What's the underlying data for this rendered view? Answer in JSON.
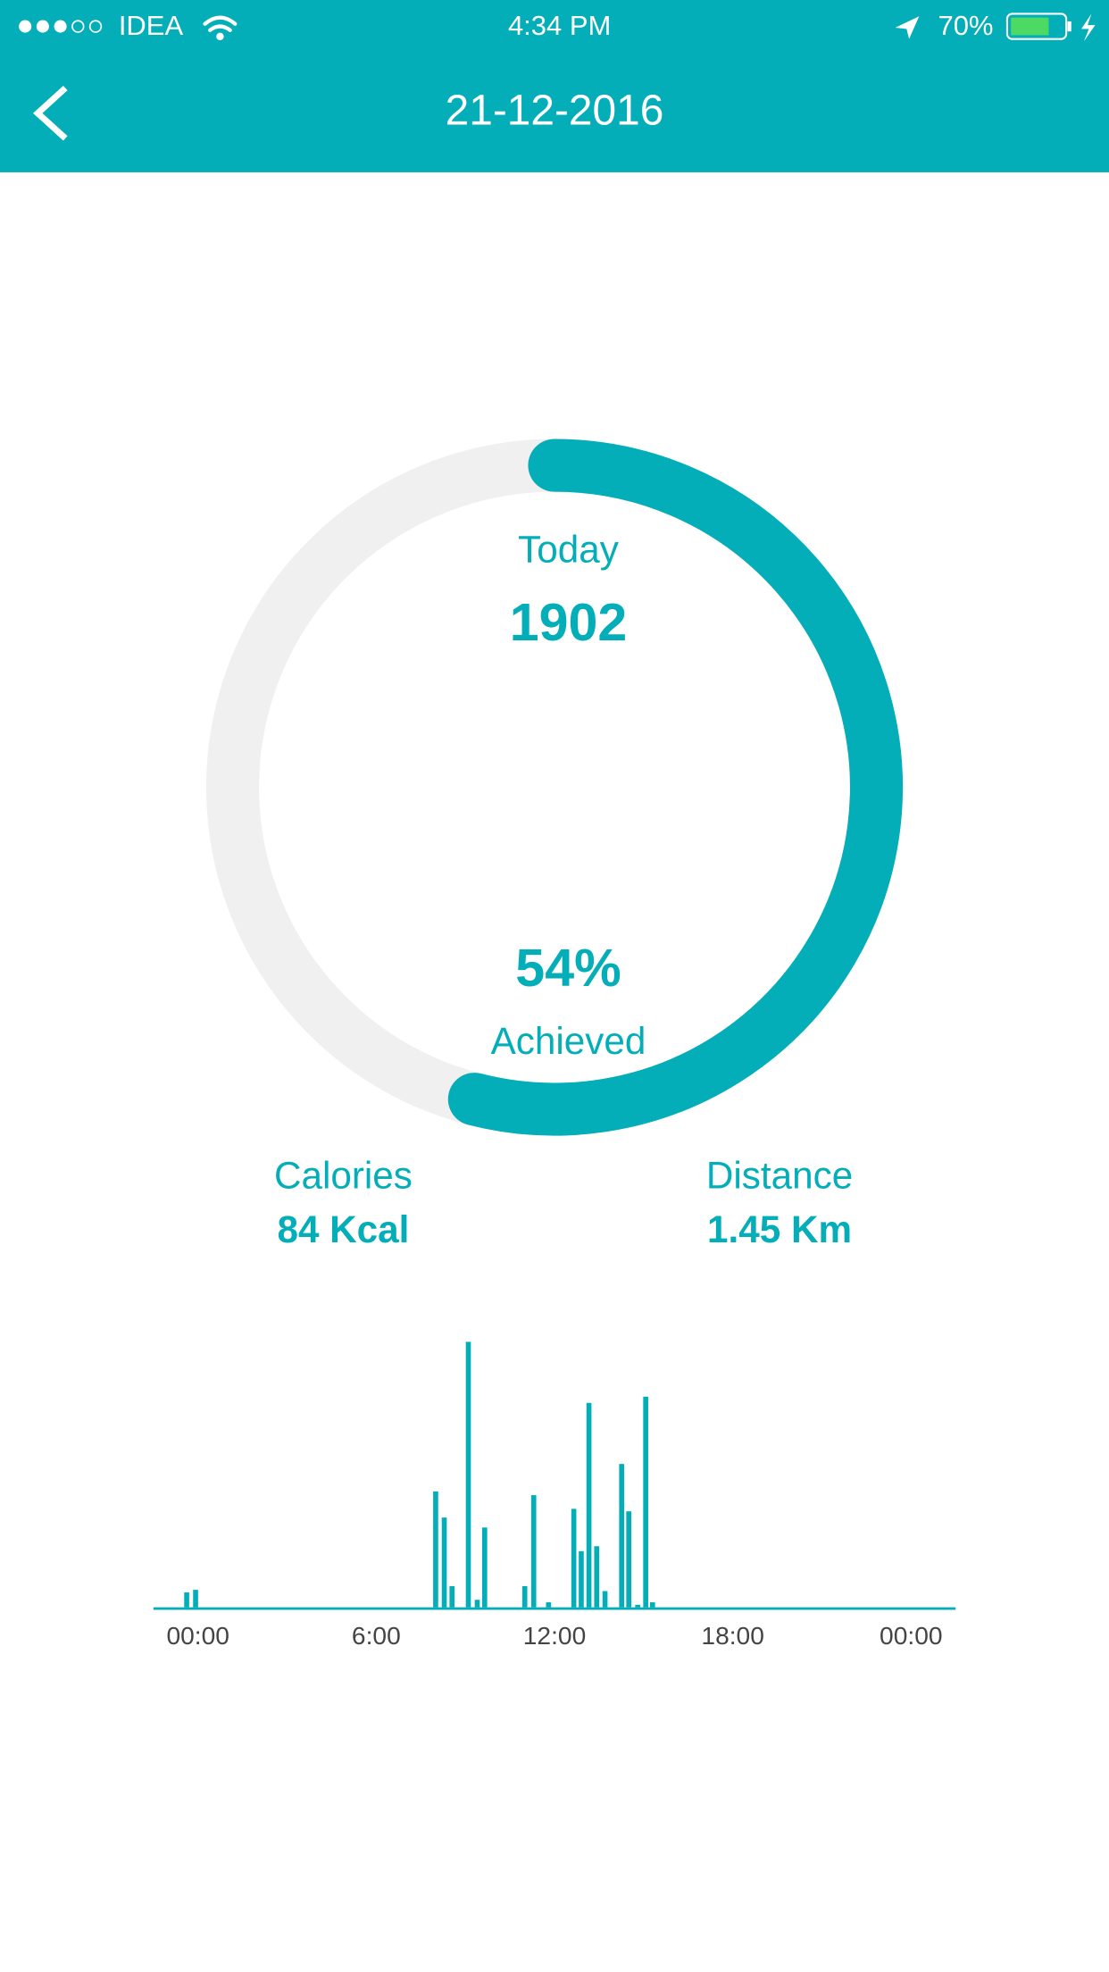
{
  "status_bar": {
    "carrier": "IDEA",
    "time": "4:34 PM",
    "battery": "70%"
  },
  "header": {
    "title": "21-12-2016"
  },
  "ring": {
    "caption": "Today",
    "steps": "1902",
    "percent": 54,
    "percent_label": "54%",
    "status": "Achieved"
  },
  "stats": [
    {
      "label": "Calories",
      "value": "84 Kcal"
    },
    {
      "label": "Distance",
      "value": "1.45 Km"
    }
  ],
  "chart_data": {
    "type": "bar",
    "color": "#04aeb8",
    "x": [
      -0.38,
      -0.08,
      8.0,
      8.29,
      8.55,
      9.1,
      9.4,
      9.65,
      11.0,
      11.3,
      11.8,
      12.65,
      12.9,
      13.16,
      13.42,
      13.7,
      14.26,
      14.5,
      14.8,
      15.07,
      15.3
    ],
    "values": [
      12,
      14,
      93,
      72,
      17,
      213,
      6,
      64,
      17,
      90,
      4,
      79,
      45,
      164,
      49,
      13,
      115,
      77,
      2,
      169,
      4
    ],
    "xlim": [
      -1.5,
      25.5
    ],
    "ylim": [
      0,
      220
    ],
    "xticks": [
      {
        "value": 0,
        "label": "00:00"
      },
      {
        "value": 6,
        "label": "6:00"
      },
      {
        "value": 12,
        "label": "12:00"
      },
      {
        "value": 18,
        "label": "18:00"
      },
      {
        "value": 24,
        "label": "00:00"
      }
    ]
  }
}
